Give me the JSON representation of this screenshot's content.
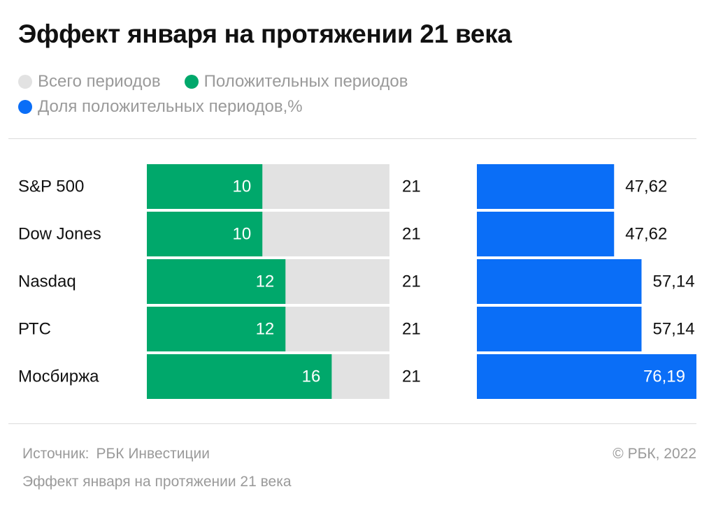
{
  "title": "Эффект января на протяжении 21 века",
  "legend": [
    {
      "label": "Всего периодов",
      "color": "#e2e2e2"
    },
    {
      "label": "Положительных периодов",
      "color": "#00a86b"
    },
    {
      "label": "Доля положительных периодов,%",
      "color": "#0a6ef7"
    }
  ],
  "chart_data": {
    "type": "bar",
    "categories": [
      "S&P 500",
      "Dow Jones",
      "Nasdaq",
      "РТС",
      "Мосбиржа"
    ],
    "series": [
      {
        "name": "Всего периодов",
        "values": [
          21,
          21,
          21,
          21,
          21
        ],
        "labels": [
          "21",
          "21",
          "21",
          "21",
          "21"
        ],
        "color": "#e2e2e2"
      },
      {
        "name": "Положительных периодов",
        "values": [
          10,
          10,
          12,
          12,
          16
        ],
        "labels": [
          "10",
          "10",
          "12",
          "12",
          "16"
        ],
        "color": "#00a86b"
      },
      {
        "name": "Доля положительных периодов,%",
        "values": [
          47.62,
          47.62,
          57.14,
          57.14,
          76.19
        ],
        "labels": [
          "47,62",
          "47,62",
          "57,14",
          "57,14",
          "76,19"
        ],
        "color": "#0a6ef7"
      }
    ],
    "grid": false,
    "legend_position": "top-left"
  },
  "footer": {
    "source_label": "Источник:",
    "source_value": "РБК Инвестиции",
    "copyright": "© РБК, 2022",
    "note": "Эффект января на протяжении 21 века"
  }
}
